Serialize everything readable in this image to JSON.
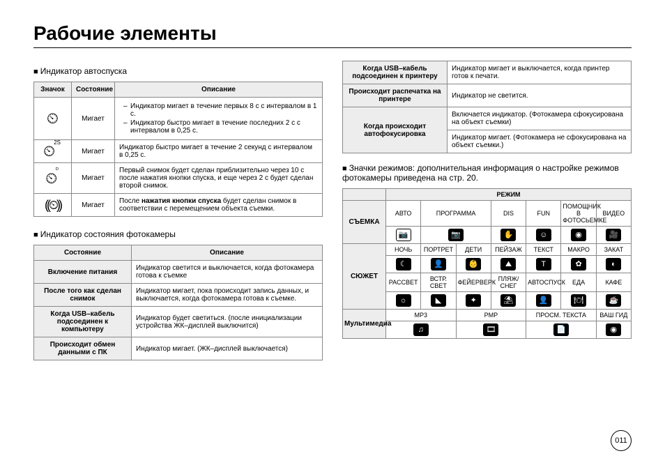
{
  "title": "Рабочие элементы",
  "pageNumber": "011",
  "left": {
    "section1": {
      "heading": "Индикатор автоспуска",
      "headers": {
        "icon": "Значок",
        "state": "Состояние",
        "desc": "Описание"
      },
      "rows": [
        {
          "iconGlyph": "⏲",
          "iconSup": "",
          "state": "Мигает",
          "descList": [
            "Индикатор мигает в течение первых 8 с с интервалом в 1 с.",
            "Индикатор быстро мигает в течение последних 2 с с интервалом в 0,25 с."
          ]
        },
        {
          "iconGlyph": "⏲",
          "iconSup": "2S",
          "state": "Мигает",
          "desc": "Индикатор быстро мигает в течение 2 секунд с интервалом в 0,25 с."
        },
        {
          "iconGlyph": "⏲",
          "iconSup": "ᴰ",
          "state": "Мигает",
          "desc": "Первый снимок будет сделан приблизительно через 10 с после нажатия кнопки спуска, и еще через 2 с будет сделан второй снимок."
        },
        {
          "iconGlyph": "((⏲))",
          "iconSup": "",
          "state": "Мигает",
          "desc": "После нажатия кнопки спуска будет сделан снимок в соответствии с перемещением объекта съемки.",
          "boldPart": "нажатия кнопки спуска"
        }
      ]
    },
    "section2": {
      "heading": "Индикатор состояния фотокамеры",
      "headers": {
        "state": "Состояние",
        "desc": "Описание"
      },
      "rows": [
        {
          "state": "Включение питания",
          "desc": "Индикатор светится и выключается, когда фотокамера готова к съемке"
        },
        {
          "state": "После того как сделан снимок",
          "desc": "Индикатор мигает, пока происходит запись данных, и выключается, когда фотокамера готова к съемке."
        },
        {
          "state": "Когда USB–кабель подсоединен к компьютеру",
          "desc": "Индикатор будет светиться. (после инициализации устройства ЖК–дисплей выключится)"
        },
        {
          "state": "Происходит обмен данными с ПК",
          "desc": "Индикатор мигает. (ЖК–дисплей выключается)"
        }
      ]
    }
  },
  "right": {
    "topTable": {
      "rows": [
        {
          "state": "Когда USB–кабель подсоединен к принтеру",
          "desc": "Индикатор мигает и выключается, когда принтер готов к печати."
        },
        {
          "state": "Происходит распечатка на принтере",
          "desc": "Индикатор не светится."
        },
        {
          "state": "Когда происходит автофокусировка",
          "desc1": "Включается индикатор. (Фотокамера сфокусирована на объект съемки)",
          "desc2": "Индикатор мигает. (Фотокамера не сфокусирована на объект съемки.)"
        }
      ]
    },
    "modesHeading": "Значки режимов: дополнительная информация о настройке режимов фотокамеры приведена на стр. 20.",
    "modesHeader": "РЕЖИМ",
    "shooting": {
      "label": "СЪЕМКА",
      "cols": [
        {
          "name": "АВТО",
          "glyph": "📷",
          "variant": "white"
        },
        {
          "name": "ПРОГРАММА",
          "glyph": "📷",
          "variant": "black"
        },
        {
          "name": "DIS",
          "glyph": "✋",
          "variant": "black"
        },
        {
          "name": "FUN",
          "glyph": "☺",
          "variant": "black"
        },
        {
          "name": "ПОМОЩНИК В ФОТОСЬЕМКЕ",
          "glyph": "◉",
          "variant": "black"
        },
        {
          "name": "ВИДЕО",
          "glyph": "🎥",
          "variant": "black"
        }
      ]
    },
    "scene": {
      "label": "СЮЖЕТ",
      "row1": [
        {
          "name": "НОЧЬ",
          "glyph": "☾",
          "variant": "black"
        },
        {
          "name": "ПОРТРЕТ",
          "glyph": "👤",
          "variant": "black"
        },
        {
          "name": "ДЕТИ",
          "glyph": "👶",
          "variant": "black"
        },
        {
          "name": "ПЕЙЗАЖ",
          "glyph": "⛰",
          "variant": "black"
        },
        {
          "name": "ТЕКСТ",
          "glyph": "T",
          "variant": "black"
        },
        {
          "name": "МАКРО",
          "glyph": "✿",
          "variant": "black"
        },
        {
          "name": "ЗАКАТ",
          "glyph": "◐",
          "variant": "black"
        }
      ],
      "row2": [
        {
          "name": "РАССВЕТ",
          "glyph": "☼",
          "variant": "black"
        },
        {
          "name": "ВСТР. СВЕТ",
          "glyph": "◣",
          "variant": "black"
        },
        {
          "name": "ФЕЙЕРВЕРК",
          "glyph": "✦",
          "variant": "black"
        },
        {
          "name": "ПЛЯЖ/ СНЕГ",
          "glyph": "⛱",
          "variant": "black"
        },
        {
          "name": "АВТОСПУСК",
          "glyph": "👤",
          "variant": "black"
        },
        {
          "name": "ЕДА",
          "glyph": "🍽",
          "variant": "black"
        },
        {
          "name": "КАФЕ",
          "glyph": "☕",
          "variant": "black"
        }
      ]
    },
    "multimedia": {
      "label": "Мультимедиа",
      "cols": [
        {
          "name": "MP3",
          "glyph": "♫",
          "variant": "black"
        },
        {
          "name": "PMP",
          "glyph": "🎞",
          "variant": "black"
        },
        {
          "name": "ПРОСМ. ТЕКСТА",
          "glyph": "📄",
          "variant": "black"
        },
        {
          "name": "ВАШ ГИД",
          "glyph": "◉",
          "variant": "black"
        }
      ]
    }
  }
}
